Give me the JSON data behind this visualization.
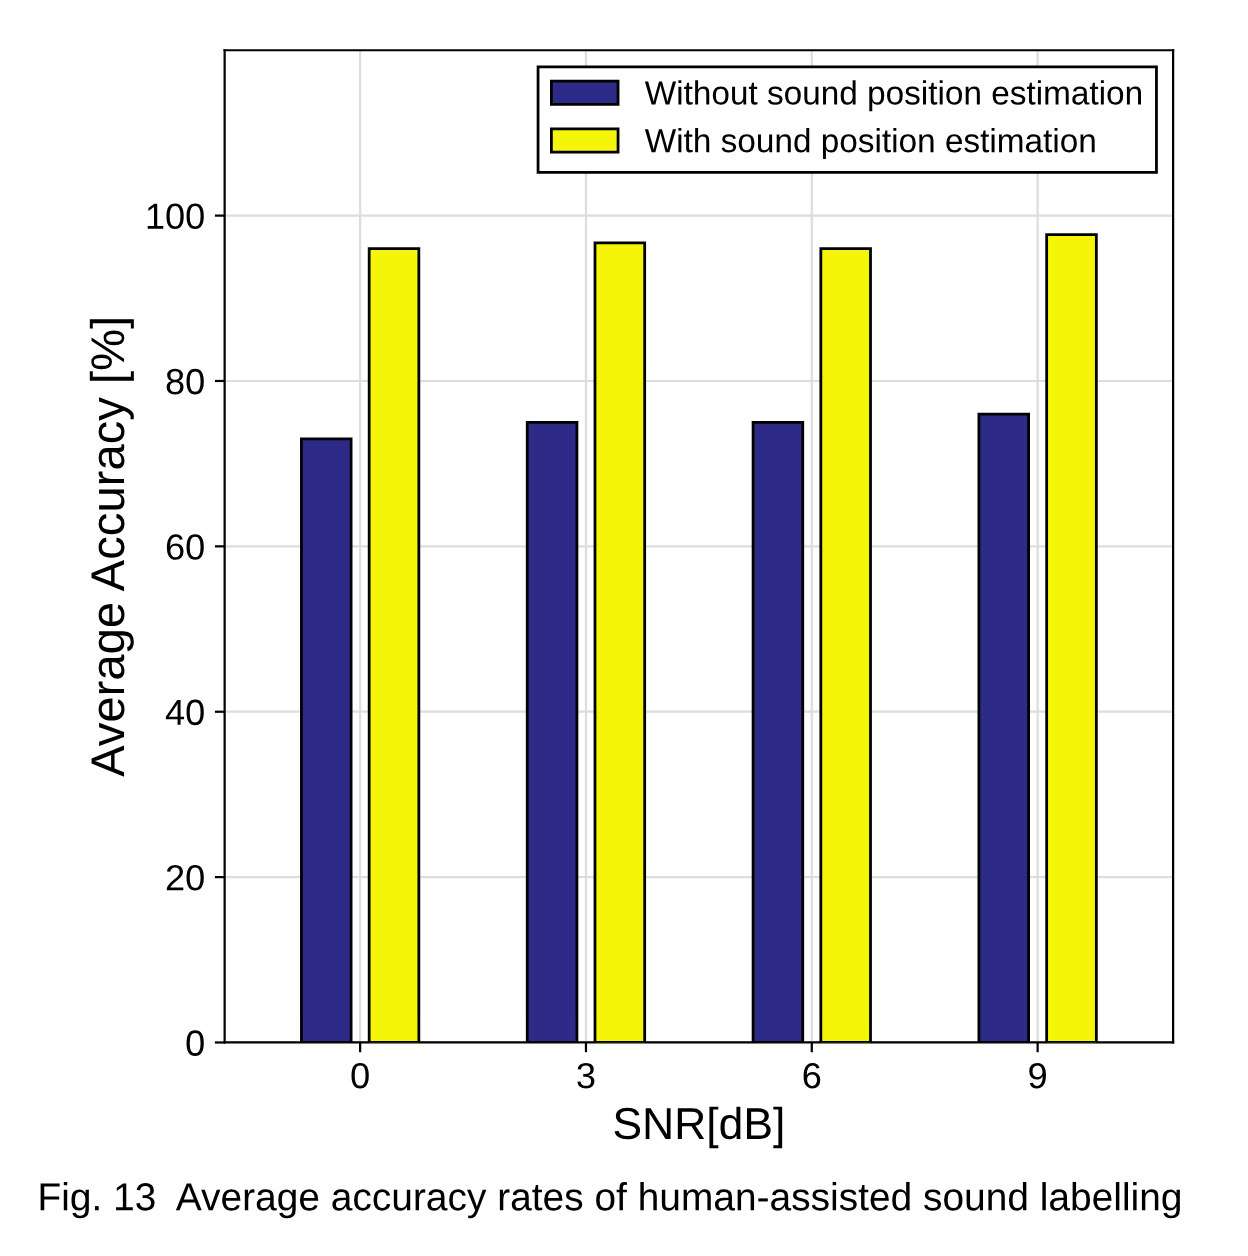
{
  "chart_data": {
    "type": "bar",
    "xlabel": "SNR[dB]",
    "ylabel": "Average Accuracy [%]",
    "categories": [
      "0",
      "3",
      "6",
      "9"
    ],
    "series": [
      {
        "name": "Without sound position estimation",
        "color": "#2e2a87",
        "values": [
          73,
          75,
          75,
          76
        ]
      },
      {
        "name": "With sound position estimation",
        "color": "#f5f50a",
        "values": [
          96,
          96.7,
          96,
          97.7
        ]
      }
    ],
    "ylim": [
      0,
      120
    ],
    "yticks": [
      0,
      20,
      40,
      60,
      80,
      100
    ],
    "grid": true,
    "legend": "top right",
    "annotations": [
      "Fig. 13  Average accuracy rates of human-assisted sound labelling"
    ]
  }
}
